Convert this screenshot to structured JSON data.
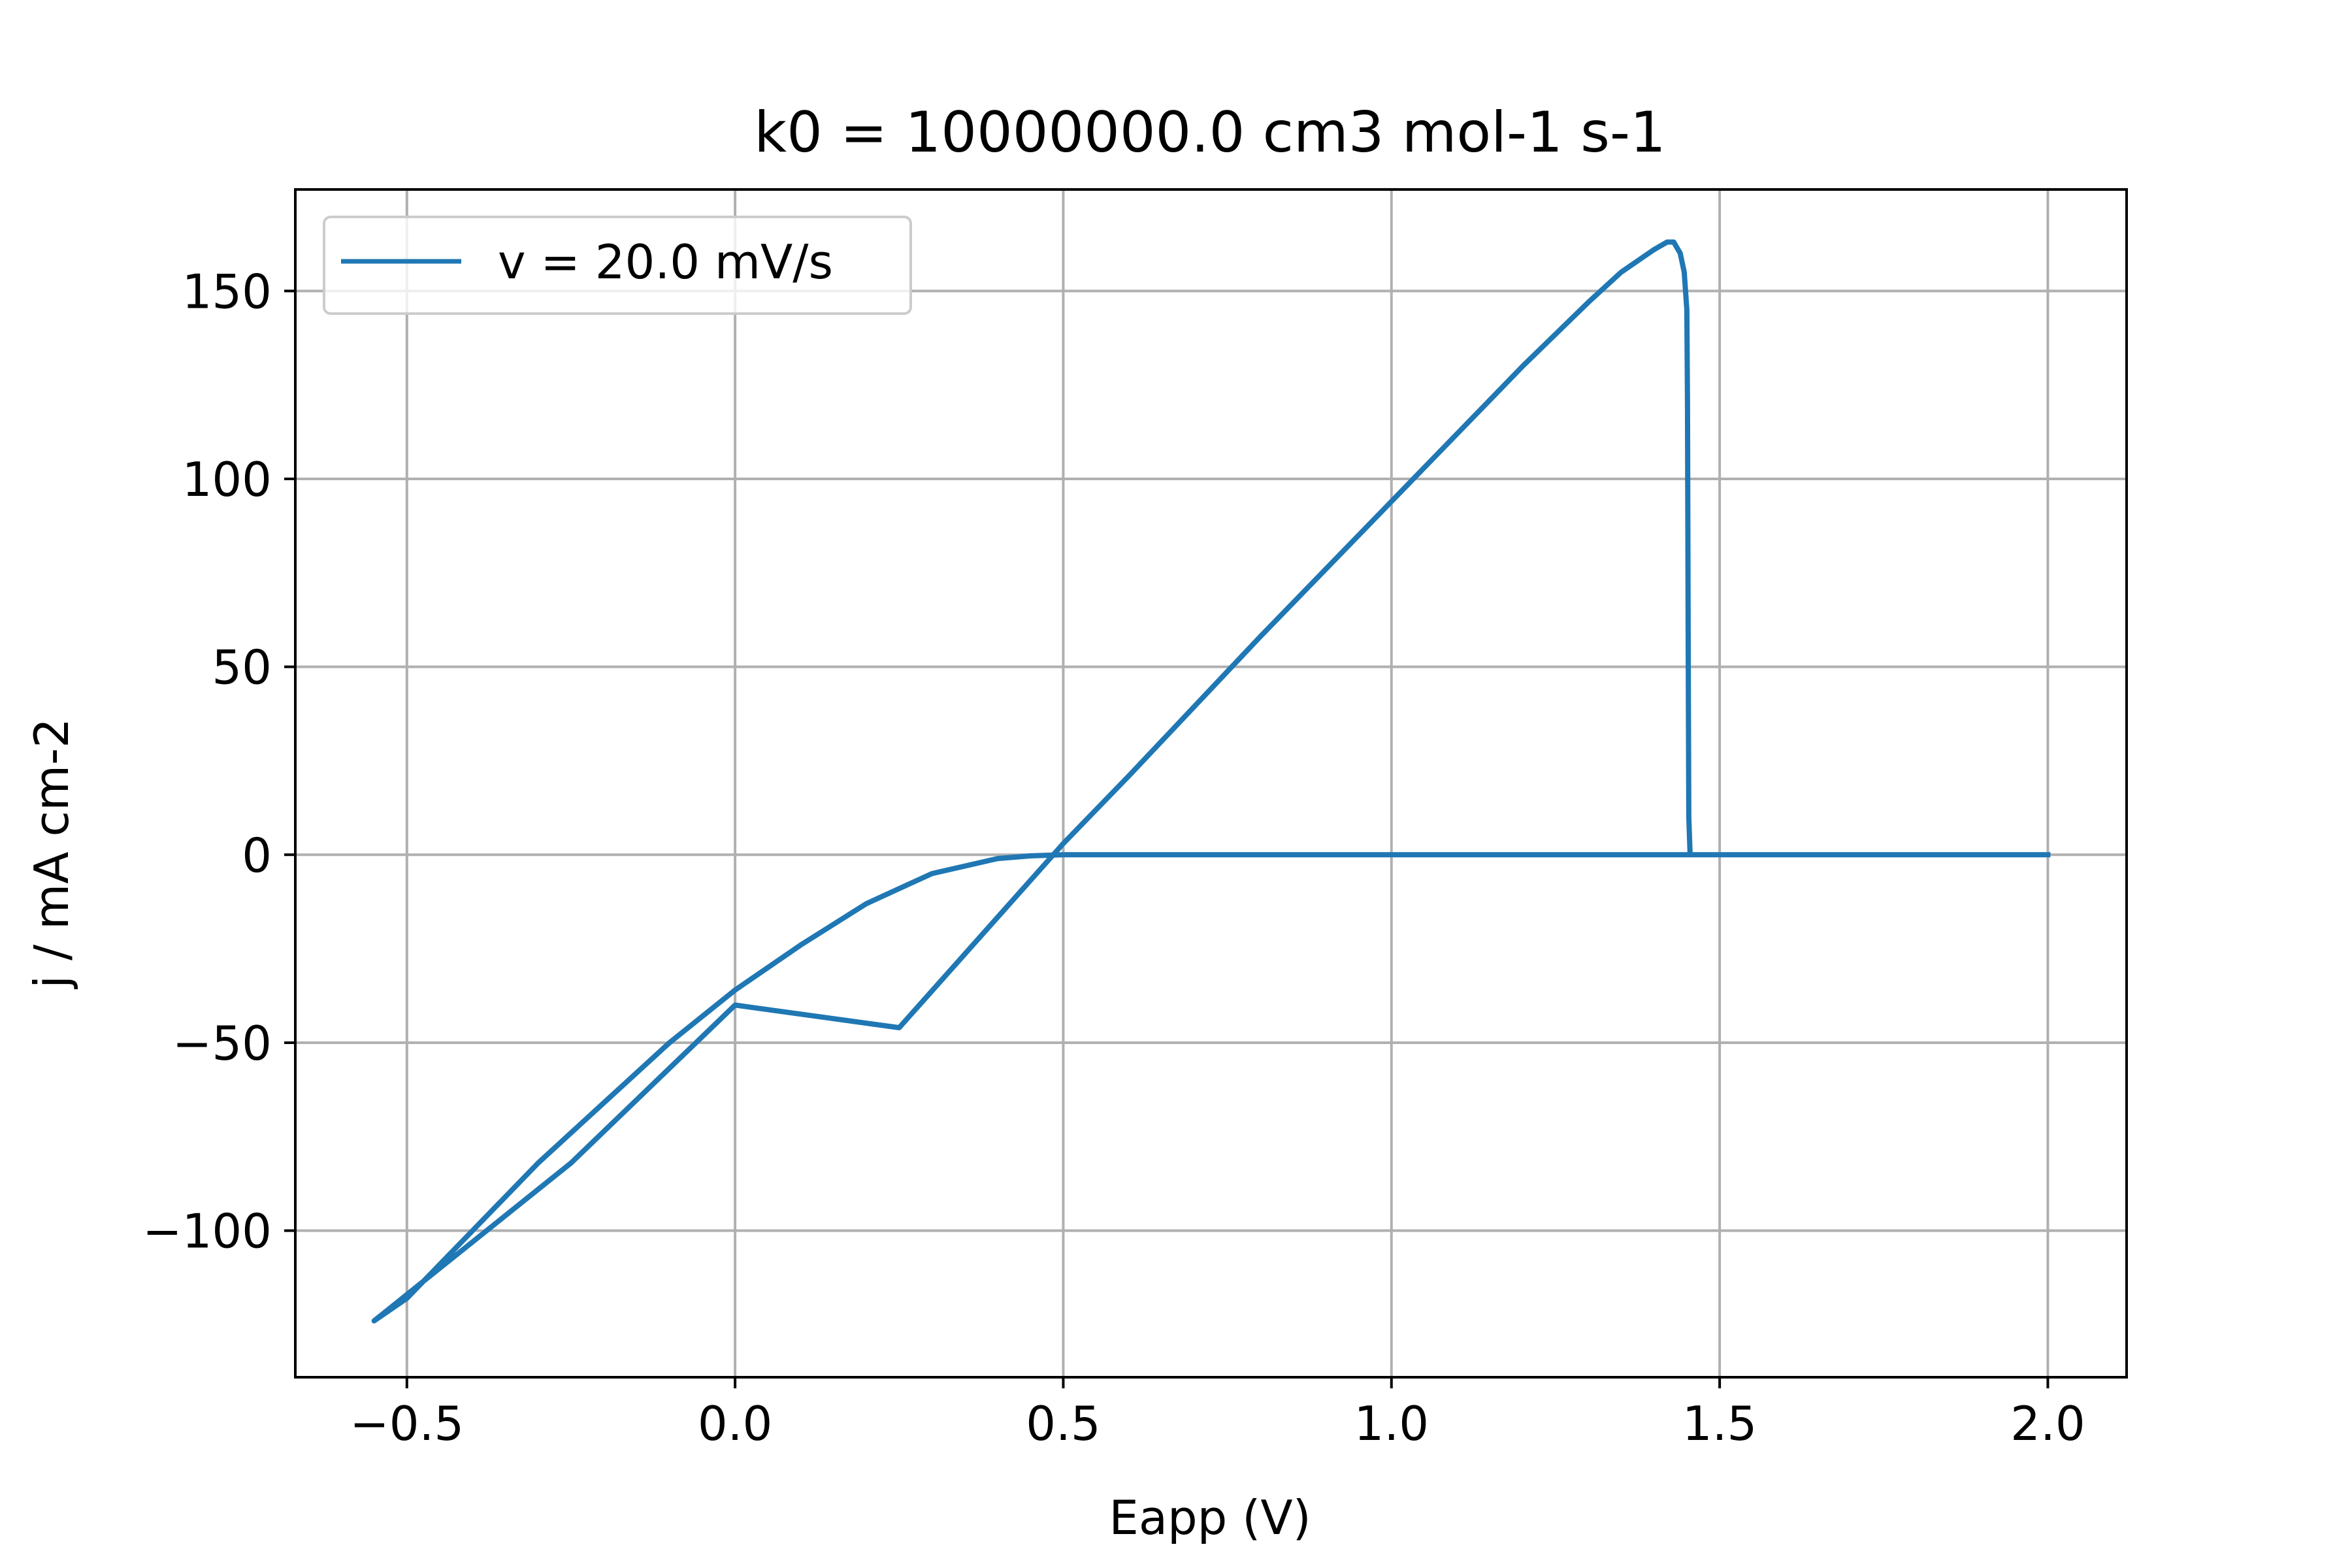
{
  "chart_data": {
    "type": "line",
    "title": "k0 = 10000000.0 cm3 mol-1 s-1",
    "xlabel": "Eapp (V)",
    "ylabel": "j / mA cm-2",
    "xlim": [
      -0.67,
      2.12
    ],
    "ylim": [
      -139,
      177
    ],
    "x_ticks": [
      -0.5,
      0.0,
      0.5,
      1.0,
      1.5,
      2.0
    ],
    "x_tick_labels": [
      "−0.5",
      "0.0",
      "0.5",
      "1.0",
      "1.5",
      "2.0"
    ],
    "y_ticks": [
      -100,
      -50,
      0,
      50,
      100,
      150
    ],
    "y_tick_labels": [
      "−100",
      "−50",
      "0",
      "50",
      "100",
      "150"
    ],
    "grid": true,
    "legend_position": "upper-left",
    "line_color": "#1f77b4",
    "series": [
      {
        "name": "v = 20.0 mV/s",
        "x": [
          2.0,
          1.8,
          1.6,
          1.46,
          1.455,
          1.453,
          1.452,
          1.451,
          1.45,
          1.446,
          1.44,
          1.43,
          1.42,
          1.4,
          1.35,
          1.3,
          1.2,
          1.1,
          1.0,
          0.8,
          0.6,
          0.5,
          0.25,
          0.0,
          -0.25,
          -0.55,
          -0.5,
          -0.4,
          -0.3,
          -0.2,
          -0.1,
          0.0,
          0.1,
          0.2,
          0.3,
          0.4,
          0.45,
          0.5,
          0.55,
          0.7,
          1.0,
          1.3,
          1.45,
          1.46,
          1.7,
          2.0
        ],
        "y": [
          0.0,
          0.0,
          0.0,
          0.0,
          0.0,
          10.0,
          60.0,
          120.0,
          145.0,
          155.0,
          160.0,
          163.0,
          163.0,
          161.0,
          155.0,
          147.0,
          130.0,
          112.0,
          94.0,
          58.0,
          21.0,
          3.0,
          -46.0,
          -40.0,
          -82.0,
          -124.0,
          -118.0,
          -100.0,
          -82.0,
          -66.0,
          -50.0,
          -36.0,
          -24.0,
          -13.0,
          -5.0,
          -1.0,
          -0.3,
          0.0,
          0.0,
          0.0,
          0.0,
          0.0,
          0.0,
          0.0,
          0.0,
          0.0
        ]
      }
    ]
  }
}
